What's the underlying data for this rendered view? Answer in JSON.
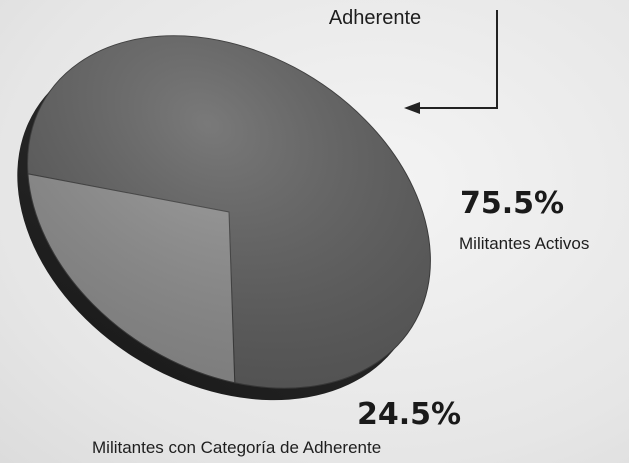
{
  "chart_data": {
    "type": "pie",
    "slices": [
      {
        "name": "Militantes Activos",
        "value": 75.5,
        "display": "75.5%",
        "color": "#5c5c5c"
      },
      {
        "name": "Militantes con Categoría de Adherente",
        "value": 24.5,
        "display": "24.5%",
        "color": "#8d8d8d"
      }
    ],
    "callout_top": "Adherente",
    "three_d": true
  }
}
